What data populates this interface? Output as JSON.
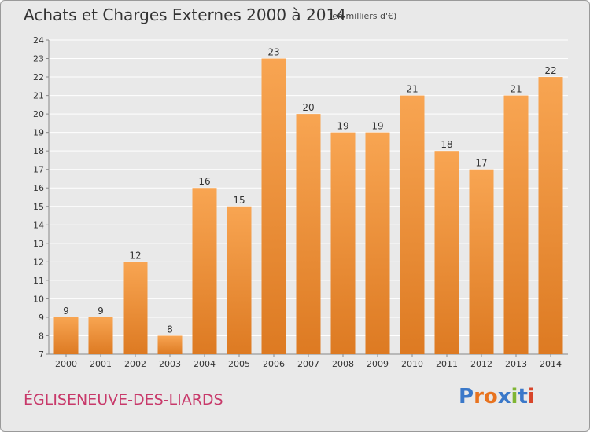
{
  "title": "Achats et Charges Externes 2000 à 2014",
  "subtitle": "(en milliers d'€)",
  "town": "ÉGLISENEUVE-DES-LIARDS",
  "brand": {
    "text": "Proxiti",
    "letter_colors": [
      "#3a78c9",
      "#e8731f",
      "#e8731f",
      "#3a78c9",
      "#7fb533",
      "#3a78c9",
      "#d8452a"
    ]
  },
  "colors": {
    "bar_light": "#f8a552",
    "bar_dark": "#dd7a22",
    "grid": "#ffffff",
    "text": "#333333"
  },
  "chart_data": {
    "type": "bar",
    "categories": [
      "2000",
      "2001",
      "2002",
      "2003",
      "2004",
      "2005",
      "2006",
      "2007",
      "2008",
      "2009",
      "2010",
      "2011",
      "2012",
      "2013",
      "2014"
    ],
    "values": [
      9,
      9,
      12,
      8,
      16,
      15,
      23,
      20,
      19,
      19,
      21,
      18,
      17,
      21,
      22
    ],
    "data_labels": [
      "9",
      "9",
      "12",
      "8",
      "16",
      "15",
      "23",
      "20",
      "19",
      "19",
      "21",
      "18",
      "17",
      "21",
      "22"
    ],
    "title": "Achats et Charges Externes 2000 à 2014",
    "xlabel": "",
    "ylabel": "",
    "ylim": [
      7,
      24
    ],
    "yticks": [
      7,
      8,
      9,
      10,
      11,
      12,
      13,
      14,
      15,
      16,
      17,
      18,
      19,
      20,
      21,
      22,
      23,
      24
    ],
    "grid": true,
    "legend": "none"
  }
}
